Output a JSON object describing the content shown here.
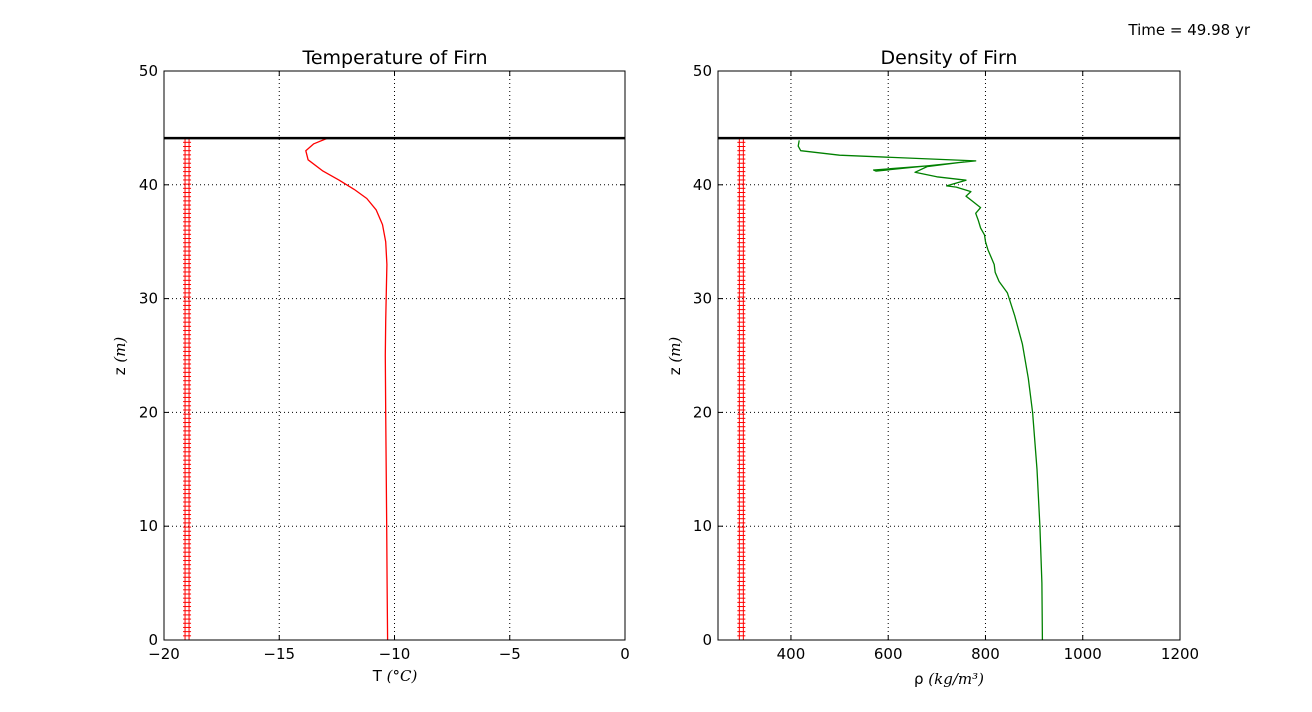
{
  "time_label": "Time = 49.98 yr",
  "chart_data": [
    {
      "type": "line",
      "title": "Temperature of Firn",
      "xlabel_prefix": "T ",
      "xlabel_math": "(°C)",
      "ylabel_prefix": "z ",
      "ylabel_math": "(m)",
      "xlim": [
        -20,
        0
      ],
      "ylim": [
        0,
        50
      ],
      "x_ticks": [
        -20,
        -15,
        -10,
        -5,
        0
      ],
      "x_tick_labels": [
        "−20",
        "−15",
        "−10",
        "−5",
        "0"
      ],
      "y_ticks": [
        0,
        10,
        20,
        30,
        40,
        50
      ],
      "y_tick_labels": [
        "0",
        "10",
        "20",
        "30",
        "40",
        "50"
      ],
      "grid": true,
      "surface_line_z": 44.1,
      "marker_x": -19.0,
      "marker_z_range": [
        0,
        44.1
      ],
      "line_color": "#ff0000",
      "marker_color": "#ff0000",
      "series": [
        {
          "x": [
            -10.3,
            -10.32,
            -10.34,
            -10.36,
            -10.38,
            -10.4,
            -10.38,
            -10.35,
            -10.33,
            -10.38,
            -10.52,
            -10.8,
            -11.2,
            -11.75,
            -12.4,
            -13.1,
            -13.75,
            -13.85,
            -13.5,
            -12.9
          ],
          "y": [
            0,
            5,
            10,
            15,
            20,
            25,
            28,
            31,
            33,
            35,
            36.5,
            37.8,
            38.8,
            39.6,
            40.4,
            41.2,
            42.2,
            43.0,
            43.6,
            44.1
          ]
        }
      ]
    },
    {
      "type": "line",
      "title": "Density of Firn",
      "xlabel_prefix": "ρ ",
      "xlabel_math": "(kg/m³)",
      "ylabel_prefix": "z ",
      "ylabel_math": "(m)",
      "xlim": [
        250,
        1200
      ],
      "ylim": [
        0,
        50
      ],
      "x_ticks": [
        400,
        600,
        800,
        1000,
        1200
      ],
      "x_tick_labels": [
        "400",
        "600",
        "800",
        "1000",
        "1200"
      ],
      "y_ticks": [
        0,
        10,
        20,
        30,
        40,
        50
      ],
      "y_tick_labels": [
        "0",
        "10",
        "20",
        "30",
        "40",
        "50"
      ],
      "grid": true,
      "surface_line_z": 44.1,
      "marker_x": 298,
      "marker_z_range": [
        0,
        44.1
      ],
      "line_color": "#008000",
      "marker_color": "#ff0000",
      "series": [
        {
          "x": [
            917,
            916,
            912,
            906,
            897,
            888,
            876,
            860,
            845,
            828,
            820,
            818,
            812,
            805,
            800,
            798,
            790,
            785,
            780,
            790,
            772,
            760,
            770,
            740,
            720,
            760,
            700,
            655,
            680,
            755,
            690,
            570,
            575,
            780,
            500,
            420,
            415,
            417
          ],
          "y": [
            0,
            5,
            10,
            15,
            20,
            23,
            26,
            28.5,
            30.5,
            31.5,
            32.3,
            33,
            33.6,
            34.3,
            35,
            35.6,
            36.2,
            36.9,
            37.5,
            38,
            38.6,
            39,
            39.4,
            39.8,
            39.9,
            40.4,
            40.7,
            41.1,
            41.6,
            42.0,
            41.7,
            41.3,
            41.2,
            42.1,
            42.6,
            43.0,
            43.4,
            43.9
          ]
        }
      ]
    }
  ]
}
